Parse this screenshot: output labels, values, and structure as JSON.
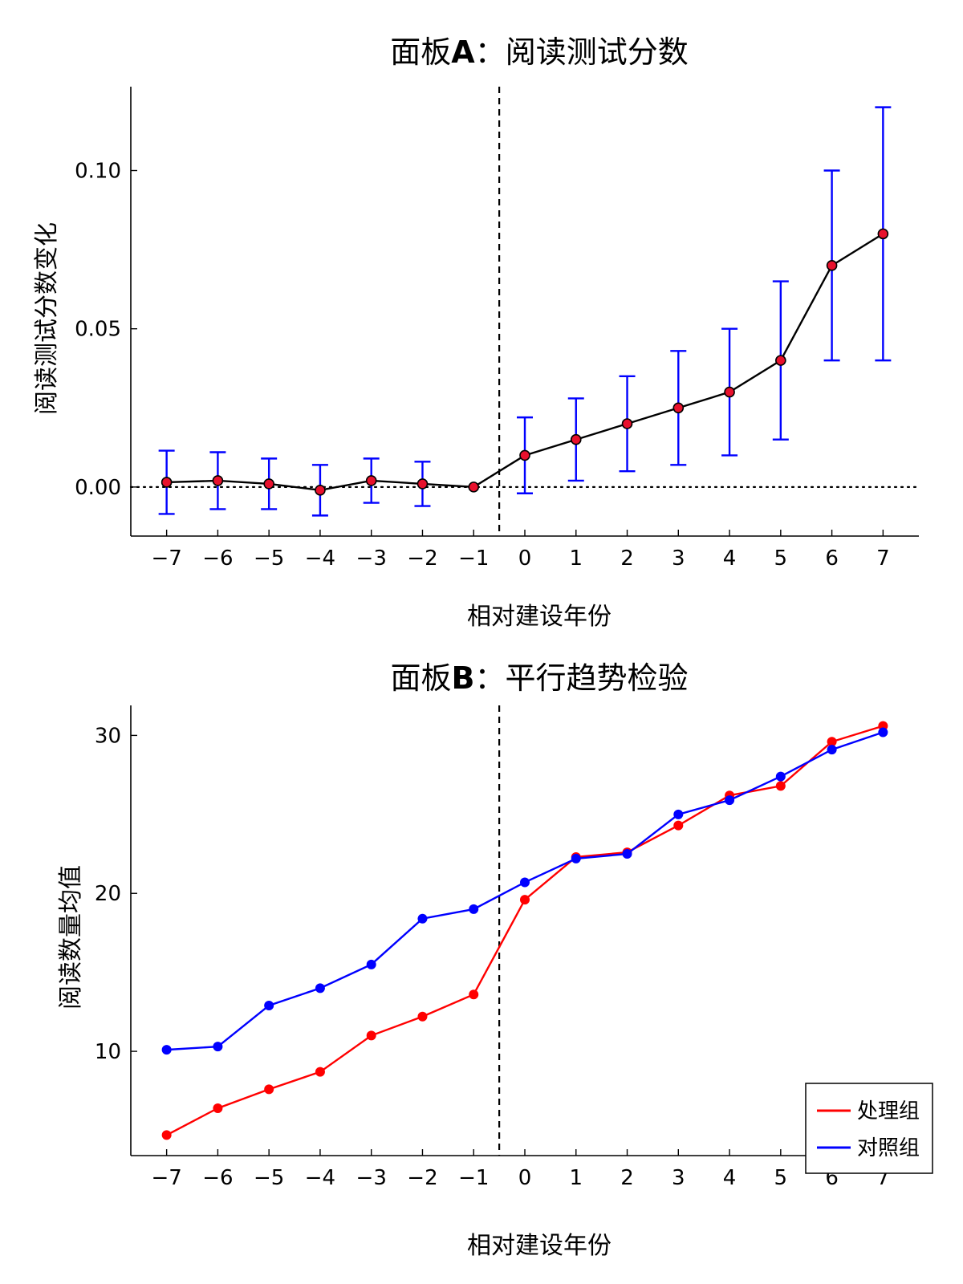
{
  "chart_data": [
    {
      "type": "line",
      "title_prefix": "面板",
      "title_bold": "A",
      "title_suffix": "：阅读测试分数",
      "xlabel": "相对建设年份",
      "ylabel": "阅读测试分数变化",
      "x": [
        -7,
        -6,
        -5,
        -4,
        -3,
        -2,
        -1,
        0,
        1,
        2,
        3,
        4,
        5,
        6,
        7
      ],
      "x_tick_labels": [
        "−7",
        "−6",
        "−5",
        "−4",
        "−3",
        "−2",
        "−1",
        "0",
        "1",
        "2",
        "3",
        "4",
        "5",
        "6",
        "7"
      ],
      "y_ticks": [
        0.0,
        0.05,
        0.1
      ],
      "y_tick_labels": [
        "0.00",
        "0.05",
        "0.10"
      ],
      "xlim": [
        -7.7,
        7.7
      ],
      "ylim": [
        -0.0155,
        0.1265
      ],
      "series": [
        {
          "values": [
            0.0015,
            0.002,
            0.001,
            -0.001,
            0.002,
            0.001,
            0.0,
            0.01,
            0.015,
            0.02,
            0.025,
            0.03,
            0.04,
            0.07,
            0.08
          ],
          "ci_low": [
            -0.0085,
            -0.007,
            -0.007,
            -0.009,
            -0.005,
            -0.006,
            0.0,
            -0.002,
            0.002,
            0.005,
            0.007,
            0.01,
            0.015,
            0.04,
            0.04
          ],
          "ci_high": [
            0.0115,
            0.011,
            0.009,
            0.007,
            0.009,
            0.008,
            0.0,
            0.022,
            0.028,
            0.035,
            0.043,
            0.05,
            0.065,
            0.1,
            0.12
          ],
          "line_color": "#000000",
          "marker_color": "#e8112d",
          "errorbar_color": "#0000ff"
        }
      ],
      "reference_hline": 0,
      "reference_vline": -0.5,
      "grid": false,
      "legend": null
    },
    {
      "type": "line",
      "title_prefix": "面板",
      "title_bold": "B",
      "title_suffix": "：平行趋势检验",
      "xlabel": "相对建设年份",
      "ylabel": "阅读数量均值",
      "x": [
        -7,
        -6,
        -5,
        -4,
        -3,
        -2,
        -1,
        0,
        1,
        2,
        3,
        4,
        5,
        6,
        7
      ],
      "x_tick_labels": [
        "−7",
        "−6",
        "−5",
        "−4",
        "−3",
        "−2",
        "−1",
        "0",
        "1",
        "2",
        "3",
        "4",
        "5",
        "6",
        "7"
      ],
      "y_ticks": [
        10,
        20,
        30
      ],
      "y_tick_labels": [
        "10",
        "20",
        "30"
      ],
      "xlim": [
        -7.7,
        7.7
      ],
      "ylim": [
        3.4,
        31.9
      ],
      "series": [
        {
          "name": "处理组",
          "color": "#ff0000",
          "values": [
            4.7,
            6.4,
            7.6,
            8.7,
            11.0,
            12.2,
            13.6,
            19.6,
            22.3,
            22.6,
            24.3,
            26.2,
            26.8,
            29.6,
            30.6
          ]
        },
        {
          "name": "对照组",
          "color": "#0000ff",
          "values": [
            10.1,
            10.3,
            12.9,
            14.0,
            15.5,
            18.4,
            19.0,
            20.7,
            22.2,
            22.5,
            25.0,
            25.9,
            27.4,
            29.1,
            30.2
          ]
        }
      ],
      "reference_vline": -0.5,
      "grid": false,
      "legend": "bottom-right"
    }
  ]
}
